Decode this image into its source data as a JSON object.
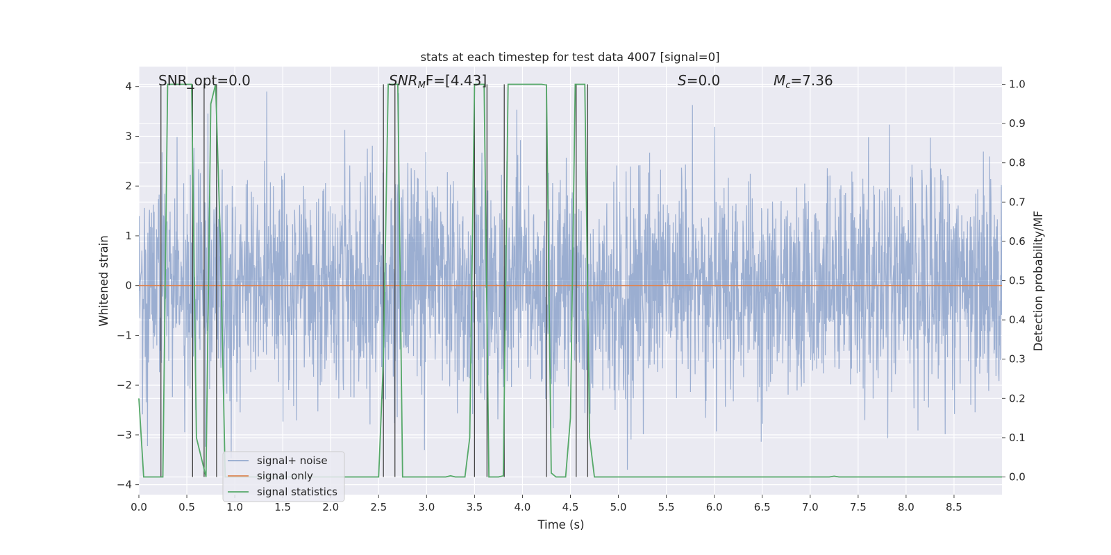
{
  "chart_data": {
    "type": "line",
    "title": "stats at each timestep for test data 4007 [signal=0]",
    "xlabel": "Time (s)",
    "ylabel": "Whitened strain",
    "y2label": "Detection probability/MF",
    "xlim": [
      0,
      9.0
    ],
    "ylim": [
      -4.2,
      4.4
    ],
    "y2lim": [
      -0.045,
      1.045
    ],
    "x_ticks": [
      "0.0",
      "0.5",
      "1.0",
      "1.5",
      "2.0",
      "2.5",
      "3.0",
      "3.5",
      "4.0",
      "4.5",
      "5.0",
      "5.5",
      "6.0",
      "6.5",
      "7.0",
      "7.5",
      "8.0",
      "8.5"
    ],
    "x_tick_values": [
      0,
      0.5,
      1,
      1.5,
      2,
      2.5,
      3,
      3.5,
      4,
      4.5,
      5,
      5.5,
      6,
      6.5,
      7,
      7.5,
      8,
      8.5
    ],
    "y_ticks": [
      "−4",
      "−3",
      "−2",
      "−1",
      "0",
      "1",
      "2",
      "3",
      "4"
    ],
    "y_tick_values": [
      -4,
      -3,
      -2,
      -1,
      0,
      1,
      2,
      3,
      4
    ],
    "y2_ticks": [
      "0.0",
      "0.1",
      "0.2",
      "0.3",
      "0.4",
      "0.5",
      "0.6",
      "0.7",
      "0.8",
      "0.9",
      "1.0"
    ],
    "y2_tick_values": [
      0,
      0.1,
      0.2,
      0.3,
      0.4,
      0.5,
      0.6,
      0.7,
      0.8,
      0.9,
      1.0
    ],
    "grid": true,
    "legend_position": "lower-left",
    "annotations": [
      "SNR_opt=0.0",
      "SNR",
      "M",
      "F=[4.43]",
      "S",
      "=0.0",
      "M",
      "c",
      "=7.36"
    ],
    "series": [
      {
        "name": "signal+ noise",
        "color": "#4c72b0",
        "axis": "left",
        "description_of_values": "whitened noise, roughly Gaussian, sigma ~1.1, sampled densely over 0 to 9 s"
      },
      {
        "name": "signal only",
        "color": "#dd8452",
        "axis": "left",
        "x": [
          0,
          9.0
        ],
        "y": [
          0,
          0
        ]
      },
      {
        "name": "signal statistics",
        "color": "#55a868",
        "axis": "right",
        "x": [
          0.0,
          0.05,
          0.1,
          0.15,
          0.2,
          0.25,
          0.3,
          0.35,
          0.4,
          0.45,
          0.5,
          0.55,
          0.6,
          0.65,
          0.7,
          0.75,
          0.8,
          0.85,
          0.9,
          0.95,
          1.0,
          1.05,
          1.1,
          1.5,
          2.0,
          2.5,
          2.55,
          2.6,
          2.65,
          2.7,
          2.75,
          2.8,
          2.9,
          3.0,
          3.1,
          3.2,
          3.25,
          3.3,
          3.35,
          3.4,
          3.45,
          3.5,
          3.55,
          3.6,
          3.65,
          3.7,
          3.75,
          3.8,
          3.85,
          3.9,
          4.0,
          4.1,
          4.2,
          4.25,
          4.3,
          4.35,
          4.4,
          4.45,
          4.5,
          4.55,
          4.6,
          4.65,
          4.7,
          4.75,
          4.8,
          5.0,
          6.0,
          7.0,
          7.2,
          7.25,
          7.3,
          7.5,
          8.0,
          8.5,
          9.0
        ],
        "y": [
          0.2,
          0.0,
          0.0,
          0.0,
          0.0,
          0.0,
          1.0,
          1.0,
          1.0,
          1.0,
          1.0,
          1.0,
          0.1,
          0.05,
          0.0,
          0.95,
          1.0,
          0.6,
          0.0,
          0.0,
          0.0,
          0.0,
          0.0,
          0.0,
          0.0,
          0.0,
          0.3,
          1.0,
          1.0,
          1.0,
          0.0,
          0.0,
          0.0,
          0.0,
          0.0,
          0.0,
          0.003,
          0.0,
          0.0,
          0.0,
          0.1,
          1.0,
          1.0,
          1.0,
          0.0,
          0.0,
          0.0,
          0.003,
          1.0,
          1.0,
          1.0,
          1.0,
          1.0,
          0.998,
          0.01,
          0.0,
          0.0,
          0.0,
          0.15,
          1.0,
          1.0,
          1.0,
          0.1,
          0.0,
          0.0,
          0.0,
          0.0,
          0.0,
          0.0,
          0.002,
          0.0,
          0.0,
          0.0,
          0.0,
          0.0
        ]
      }
    ],
    "vertical_markers_x": [
      0.23,
      0.56,
      0.68,
      0.81,
      2.55,
      2.67,
      3.5,
      3.63,
      3.81,
      4.25,
      4.56,
      4.68
    ],
    "marker_color": "#444444"
  }
}
